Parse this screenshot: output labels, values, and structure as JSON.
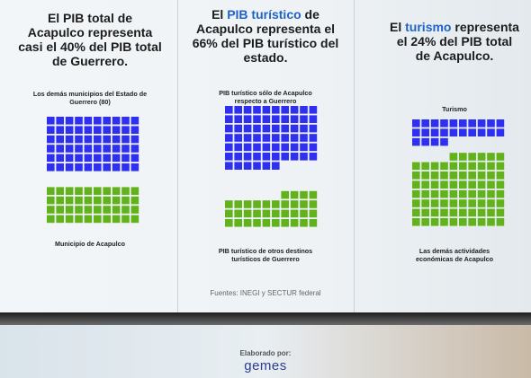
{
  "chart_data": [
    {
      "type": "waffle",
      "title": [
        "El PIB total de Acapulco representa casi el 40% del PIB total de Guerrero."
      ],
      "title_colors": [
        "#1c1c1c"
      ],
      "categories": [
        "Los demás municipios del Estado de Guerrero (80)",
        "Municipio de Acapulco"
      ],
      "values": [
        60,
        40
      ],
      "colors": [
        "#2f2ff0",
        "#62b21c"
      ]
    },
    {
      "type": "waffle",
      "title": [
        "El ",
        "PIB turístico",
        " de Acapulco representa el 66% del PIB turístico del estado."
      ],
      "title_colors": [
        "#1c1c1c",
        "#1f63c6",
        "#1c1c1c"
      ],
      "categories": [
        "PIB turístico sólo de Acapulco respecto a Guerrero",
        "PIB turístico de otros destinos turísticos de Guerrero"
      ],
      "values": [
        66,
        34
      ],
      "colors": [
        "#2f2ff0",
        "#62b21c"
      ]
    },
    {
      "type": "waffle",
      "title": [
        "El ",
        "turismo",
        " representa el 24% del PIB total de Acapulco."
      ],
      "title_colors": [
        "#1c1c1c",
        "#1f63c6",
        "#1c1c1c"
      ],
      "categories": [
        "Turismo",
        "Las demás actividades económicas de Acapulco"
      ],
      "values": [
        24,
        76
      ],
      "colors": [
        "#2f2ff0",
        "#62b21c"
      ]
    }
  ],
  "source": "Fuentes: INEGI y SECTUR federal",
  "credit": "Elaborado por:",
  "logo": "gemes"
}
